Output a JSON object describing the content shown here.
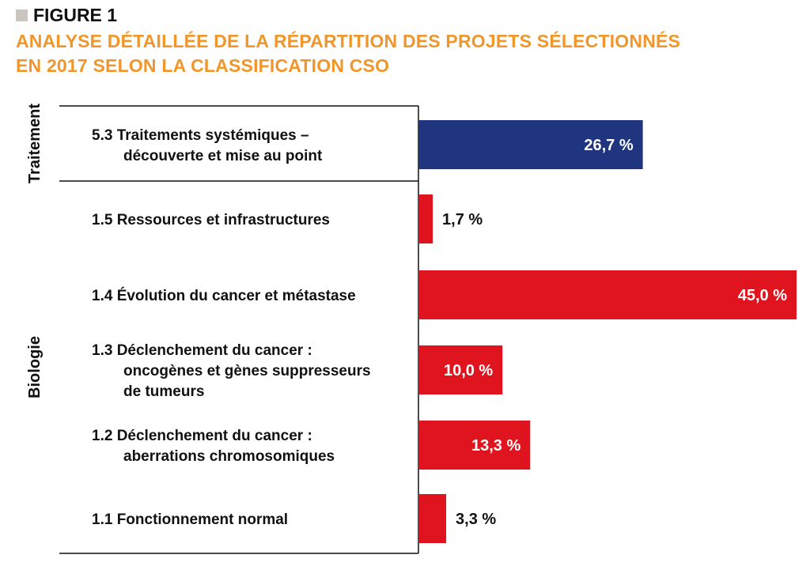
{
  "figure": {
    "label": "FIGURE 1",
    "title_line1": "ANALYSE DÉTAILLÉE DE LA RÉPARTITION DES PROJETS SÉLECTIONNÉS",
    "title_line2": "EN 2017 SELON LA CLASSIFICATION CSO"
  },
  "colors": {
    "traitement": "#1f3580",
    "biologie": "#e0141e",
    "title": "#f0962a"
  },
  "chart_data": {
    "type": "bar",
    "orientation": "horizontal",
    "unit": "%",
    "groups": [
      {
        "name": "Traitement",
        "color": "#1f3580",
        "categories": [
          {
            "lines": [
              "5.3 Traitements systémiques –",
              "découverte et mise au point"
            ],
            "value": 26.7,
            "label": "26,7 %"
          }
        ]
      },
      {
        "name": "Biologie",
        "color": "#e0141e",
        "categories": [
          {
            "lines": [
              "1.5 Ressources et infrastructures"
            ],
            "value": 1.7,
            "label": "1,7 %"
          },
          {
            "lines": [
              "1.4 Évolution du cancer et métastase"
            ],
            "value": 45.0,
            "label": "45,0 %"
          },
          {
            "lines": [
              "1.3 Déclenchement du cancer :",
              "oncogènes et gènes suppresseurs",
              "de tumeurs"
            ],
            "value": 10.0,
            "label": "10,0 %"
          },
          {
            "lines": [
              "1.2 Déclenchement du cancer :",
              "aberrations chromosomiques"
            ],
            "value": 13.3,
            "label": "13,3 %"
          },
          {
            "lines": [
              "1.1 Fonctionnement normal"
            ],
            "value": 3.3,
            "label": "3,3 %"
          }
        ]
      }
    ]
  }
}
